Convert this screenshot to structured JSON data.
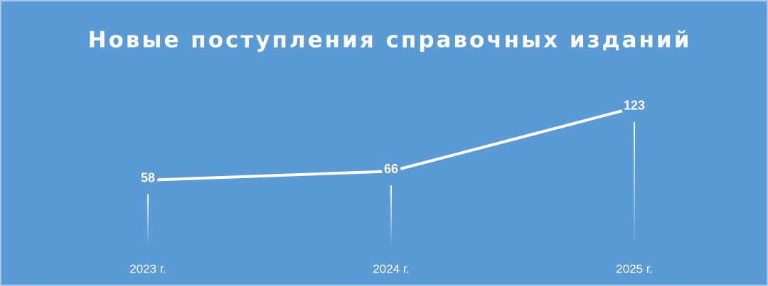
{
  "chart_data": {
    "type": "line",
    "title": "Новые поступления справочных изданий",
    "categories": [
      "2023 г.",
      "2024 г.",
      "2025 г."
    ],
    "series": [
      {
        "name": "Новые поступления",
        "color": "#ffffff",
        "values": [
          58,
          66,
          123
        ]
      }
    ],
    "ylim": [
      0,
      140
    ]
  }
}
